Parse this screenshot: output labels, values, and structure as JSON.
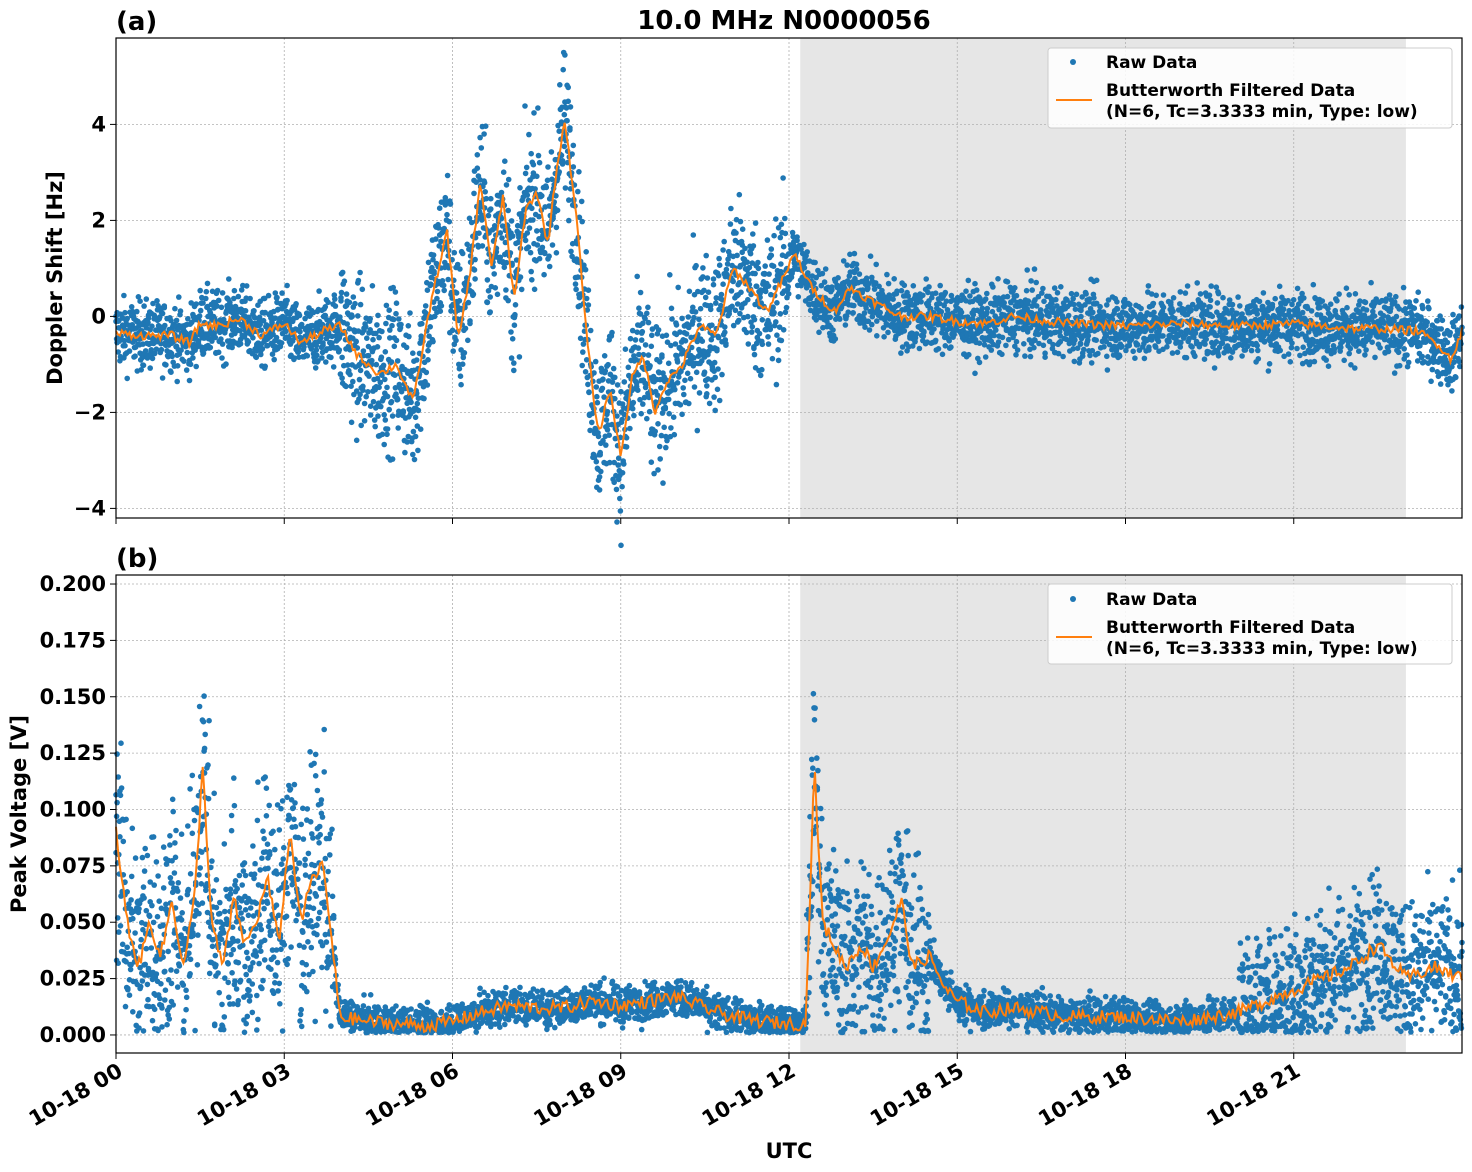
{
  "figure": {
    "title": "10.0 MHz N0000056",
    "xlabel": "UTC",
    "x_tick_labels": [
      "10-18 00",
      "10-18 03",
      "10-18 06",
      "10-18 09",
      "10-18 12",
      "10-18 15",
      "10-18 18",
      "10-18 21"
    ],
    "shaded_interval_hours": [
      12.2,
      23.0
    ],
    "colors": {
      "raw": "#1f77b4",
      "filtered": "#ff7f0e",
      "shade": "#e6e6e6"
    },
    "legend": {
      "placement": "top-right",
      "raw_label": "Raw Data",
      "filtered_label_line1": "Butterworth Filtered Data",
      "filtered_label_line2": "(N=6, Tc=3.3333 min, Type: low)"
    }
  },
  "chart_data": [
    {
      "type": "scatter",
      "panel_label": "(a)",
      "ylabel": "Doppler Shift [Hz]",
      "xlim_hours": [
        0,
        24
      ],
      "ylim": [
        -4.2,
        5.8
      ],
      "y_ticks": [
        -4,
        -2,
        0,
        2,
        4
      ],
      "y_tick_labels": [
        "−4",
        "−2",
        "0",
        "2",
        "4"
      ],
      "grid": true,
      "series": [
        {
          "name": "Raw Data",
          "style": "dots"
        },
        {
          "name": "Butterworth Filtered Data (N=6, Tc=3.3333 min, Type: low)",
          "style": "line"
        }
      ],
      "filtered": [
        [
          0.0,
          -0.35
        ],
        [
          0.5,
          -0.4
        ],
        [
          1.0,
          -0.4
        ],
        [
          1.3,
          -0.55
        ],
        [
          1.5,
          -0.15
        ],
        [
          1.8,
          -0.2
        ],
        [
          2.2,
          -0.05
        ],
        [
          2.6,
          -0.4
        ],
        [
          3.0,
          -0.15
        ],
        [
          3.3,
          -0.55
        ],
        [
          3.7,
          -0.3
        ],
        [
          4.0,
          -0.2
        ],
        [
          4.3,
          -0.8
        ],
        [
          4.7,
          -1.2
        ],
        [
          5.0,
          -1.0
        ],
        [
          5.3,
          -1.8
        ],
        [
          5.6,
          0.2
        ],
        [
          5.9,
          1.8
        ],
        [
          6.1,
          -0.5
        ],
        [
          6.3,
          0.8
        ],
        [
          6.5,
          2.8
        ],
        [
          6.7,
          1.0
        ],
        [
          6.9,
          2.5
        ],
        [
          7.1,
          0.3
        ],
        [
          7.3,
          2.2
        ],
        [
          7.5,
          2.6
        ],
        [
          7.7,
          1.5
        ],
        [
          7.85,
          3.0
        ],
        [
          8.0,
          4.1
        ],
        [
          8.2,
          2.2
        ],
        [
          8.4,
          -0.5
        ],
        [
          8.6,
          -2.5
        ],
        [
          8.8,
          -1.5
        ],
        [
          9.0,
          -2.9
        ],
        [
          9.2,
          -1.3
        ],
        [
          9.4,
          -0.8
        ],
        [
          9.6,
          -2.0
        ],
        [
          9.8,
          -1.4
        ],
        [
          10.1,
          -1.0
        ],
        [
          10.4,
          -0.2
        ],
        [
          10.7,
          -0.4
        ],
        [
          11.0,
          1.0
        ],
        [
          11.3,
          0.6
        ],
        [
          11.6,
          0.1
        ],
        [
          11.9,
          0.8
        ],
        [
          12.1,
          1.3
        ],
        [
          12.4,
          0.6
        ],
        [
          12.8,
          0.1
        ],
        [
          13.1,
          0.6
        ],
        [
          13.5,
          0.3
        ],
        [
          14.0,
          0.0
        ],
        [
          14.5,
          0.0
        ],
        [
          15.0,
          -0.1
        ],
        [
          15.5,
          -0.15
        ],
        [
          16.0,
          0.0
        ],
        [
          17.0,
          -0.15
        ],
        [
          18.0,
          -0.2
        ],
        [
          19.0,
          -0.15
        ],
        [
          20.0,
          -0.2
        ],
        [
          21.0,
          -0.15
        ],
        [
          22.0,
          -0.25
        ],
        [
          22.5,
          -0.25
        ],
        [
          23.2,
          -0.3
        ],
        [
          23.6,
          -0.6
        ],
        [
          23.8,
          -0.9
        ],
        [
          24.0,
          -0.3
        ]
      ],
      "raw_spread_hz": 0.35
    },
    {
      "type": "scatter",
      "panel_label": "(b)",
      "ylabel": "Peak Voltage [V]",
      "xlim_hours": [
        0,
        24
      ],
      "ylim": [
        -0.008,
        0.204
      ],
      "y_ticks": [
        0.0,
        0.025,
        0.05,
        0.075,
        0.1,
        0.125,
        0.15,
        0.175,
        0.2
      ],
      "y_tick_labels": [
        "0.000",
        "0.025",
        "0.050",
        "0.075",
        "0.100",
        "0.125",
        "0.150",
        "0.175",
        "0.200"
      ],
      "grid": true,
      "series": [
        {
          "name": "Raw Data",
          "style": "dots"
        },
        {
          "name": "Butterworth Filtered Data (N=6, Tc=3.3333 min, Type: low)",
          "style": "line"
        }
      ],
      "filtered": [
        [
          0.0,
          0.09
        ],
        [
          0.2,
          0.05
        ],
        [
          0.4,
          0.03
        ],
        [
          0.6,
          0.05
        ],
        [
          0.8,
          0.035
        ],
        [
          1.0,
          0.06
        ],
        [
          1.2,
          0.03
        ],
        [
          1.4,
          0.06
        ],
        [
          1.55,
          0.12
        ],
        [
          1.7,
          0.05
        ],
        [
          1.9,
          0.03
        ],
        [
          2.1,
          0.06
        ],
        [
          2.3,
          0.04
        ],
        [
          2.5,
          0.05
        ],
        [
          2.7,
          0.07
        ],
        [
          2.9,
          0.04
        ],
        [
          3.1,
          0.09
        ],
        [
          3.3,
          0.05
        ],
        [
          3.5,
          0.07
        ],
        [
          3.7,
          0.075
        ],
        [
          3.85,
          0.04
        ],
        [
          4.0,
          0.008
        ],
        [
          4.5,
          0.006
        ],
        [
          5.0,
          0.005
        ],
        [
          5.5,
          0.004
        ],
        [
          6.0,
          0.006
        ],
        [
          6.5,
          0.01
        ],
        [
          7.0,
          0.013
        ],
        [
          7.5,
          0.012
        ],
        [
          8.0,
          0.012
        ],
        [
          8.5,
          0.015
        ],
        [
          9.0,
          0.013
        ],
        [
          9.5,
          0.015
        ],
        [
          10.0,
          0.017
        ],
        [
          10.5,
          0.012
        ],
        [
          11.0,
          0.008
        ],
        [
          11.5,
          0.006
        ],
        [
          12.0,
          0.005
        ],
        [
          12.3,
          0.005
        ],
        [
          12.45,
          0.12
        ],
        [
          12.6,
          0.05
        ],
        [
          12.8,
          0.04
        ],
        [
          13.0,
          0.03
        ],
        [
          13.3,
          0.04
        ],
        [
          13.5,
          0.03
        ],
        [
          13.8,
          0.045
        ],
        [
          14.0,
          0.06
        ],
        [
          14.2,
          0.03
        ],
        [
          14.5,
          0.035
        ],
        [
          14.8,
          0.02
        ],
        [
          15.0,
          0.015
        ],
        [
          15.5,
          0.01
        ],
        [
          16.0,
          0.012
        ],
        [
          17.0,
          0.008
        ],
        [
          18.0,
          0.008
        ],
        [
          19.0,
          0.006
        ],
        [
          20.0,
          0.01
        ],
        [
          20.5,
          0.015
        ],
        [
          21.0,
          0.02
        ],
        [
          21.5,
          0.025
        ],
        [
          22.0,
          0.03
        ],
        [
          22.5,
          0.04
        ],
        [
          23.0,
          0.025
        ],
        [
          23.5,
          0.03
        ],
        [
          24.0,
          0.025
        ]
      ],
      "raw_spread_v": 0.012
    }
  ]
}
